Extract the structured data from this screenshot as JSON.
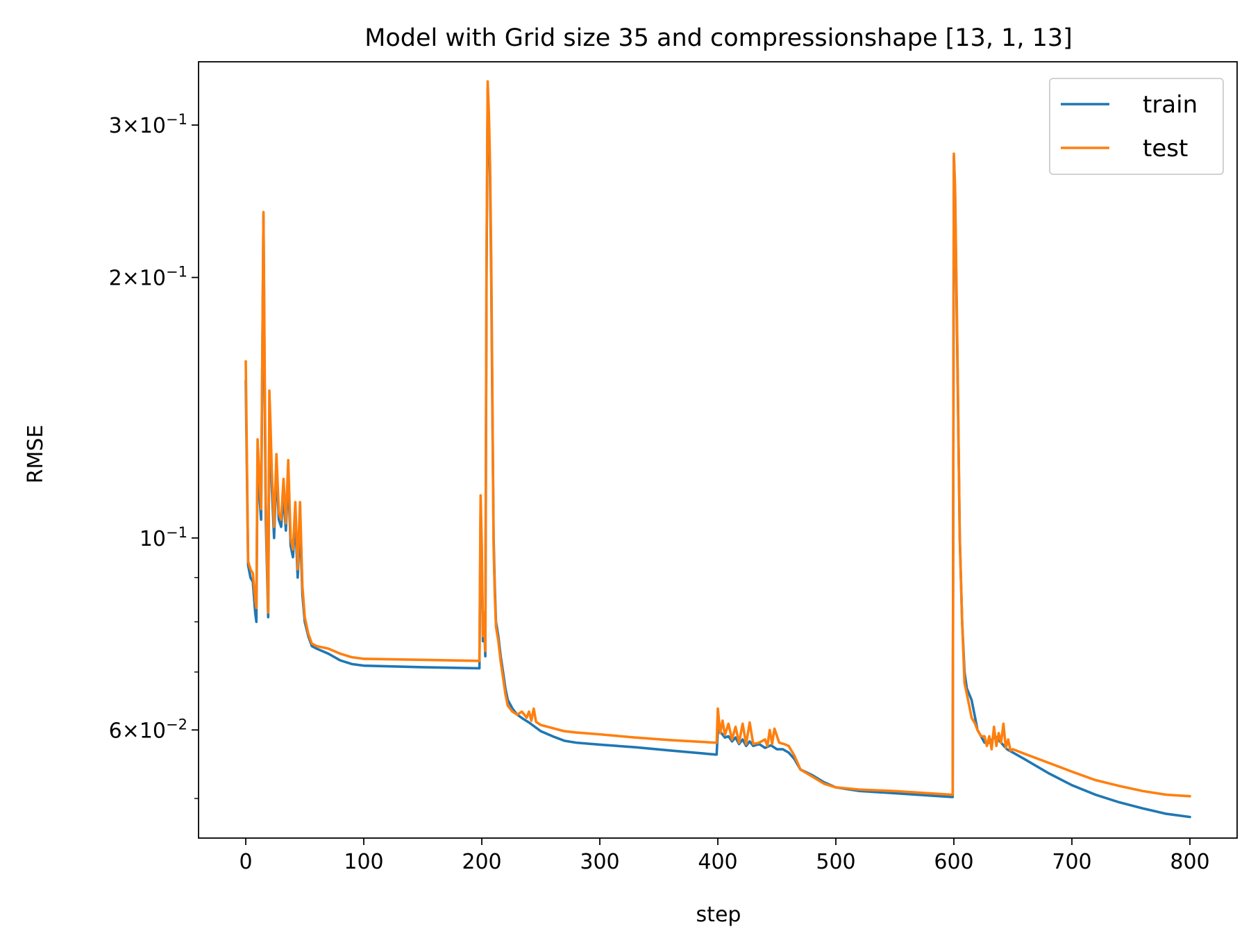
{
  "chart_data": {
    "type": "line",
    "title": "Model with Grid size 35 and compressionshape [13, 1, 13]",
    "xlabel": "step",
    "ylabel": "RMSE",
    "xlim": [
      -40,
      840
    ],
    "ylim": [
      0.045,
      0.355
    ],
    "yscale": "log",
    "grid": false,
    "legend_position": "top-right",
    "x_ticks": [
      0,
      100,
      200,
      300,
      400,
      500,
      600,
      700,
      800
    ],
    "y_major_ticks": [
      {
        "value": 0.1,
        "base": "10",
        "exp": "−1",
        "mant": ""
      },
      {
        "value": 0.2,
        "base": "10",
        "exp": "−1",
        "mant": "2"
      },
      {
        "value": 0.3,
        "base": "10",
        "exp": "−1",
        "mant": "3"
      },
      {
        "value": 0.06,
        "base": "10",
        "exp": "−2",
        "mant": "6"
      }
    ],
    "y_minor_ticks": [
      0.05,
      0.07,
      0.08,
      0.09
    ],
    "series": [
      {
        "name": "train",
        "color": "#1f77b4",
        "points": [
          [
            0,
            0.152
          ],
          [
            2,
            0.093
          ],
          [
            4,
            0.09
          ],
          [
            6,
            0.089
          ],
          [
            8,
            0.082
          ],
          [
            9,
            0.08
          ],
          [
            10,
            0.125
          ],
          [
            12,
            0.11
          ],
          [
            13,
            0.105
          ],
          [
            15,
            0.236
          ],
          [
            16,
            0.15
          ],
          [
            17,
            0.105
          ],
          [
            19,
            0.081
          ],
          [
            20,
            0.14
          ],
          [
            21,
            0.13
          ],
          [
            22,
            0.115
          ],
          [
            24,
            0.1
          ],
          [
            26,
            0.12
          ],
          [
            28,
            0.105
          ],
          [
            30,
            0.103
          ],
          [
            32,
            0.112
          ],
          [
            34,
            0.102
          ],
          [
            36,
            0.118
          ],
          [
            38,
            0.098
          ],
          [
            40,
            0.095
          ],
          [
            42,
            0.105
          ],
          [
            44,
            0.09
          ],
          [
            46,
            0.104
          ],
          [
            48,
            0.086
          ],
          [
            50,
            0.08
          ],
          [
            53,
            0.077
          ],
          [
            56,
            0.075
          ],
          [
            60,
            0.0745
          ],
          [
            70,
            0.0735
          ],
          [
            80,
            0.0722
          ],
          [
            90,
            0.0715
          ],
          [
            100,
            0.0712
          ],
          [
            150,
            0.0709
          ],
          [
            197,
            0.0707
          ],
          [
            198,
            0.0707
          ],
          [
            199,
            0.108
          ],
          [
            200,
            0.095
          ],
          [
            201,
            0.076
          ],
          [
            202,
            0.08
          ],
          [
            203,
            0.073
          ],
          [
            204,
            0.2
          ],
          [
            205,
            0.33
          ],
          [
            206,
            0.3
          ],
          [
            207,
            0.26
          ],
          [
            208,
            0.2
          ],
          [
            209,
            0.14
          ],
          [
            210,
            0.1
          ],
          [
            211,
            0.088
          ],
          [
            212,
            0.08
          ],
          [
            214,
            0.077
          ],
          [
            216,
            0.073
          ],
          [
            218,
            0.07
          ],
          [
            220,
            0.067
          ],
          [
            222,
            0.065
          ],
          [
            226,
            0.0635
          ],
          [
            230,
            0.0625
          ],
          [
            235,
            0.0618
          ],
          [
            240,
            0.0612
          ],
          [
            245,
            0.0605
          ],
          [
            250,
            0.0598
          ],
          [
            260,
            0.059
          ],
          [
            270,
            0.0583
          ],
          [
            280,
            0.058
          ],
          [
            300,
            0.0577
          ],
          [
            330,
            0.0573
          ],
          [
            360,
            0.0568
          ],
          [
            398,
            0.0562
          ],
          [
            399,
            0.0562
          ],
          [
            400,
            0.06
          ],
          [
            403,
            0.0595
          ],
          [
            406,
            0.0588
          ],
          [
            409,
            0.059
          ],
          [
            412,
            0.0582
          ],
          [
            415,
            0.0588
          ],
          [
            418,
            0.0578
          ],
          [
            421,
            0.0585
          ],
          [
            424,
            0.0575
          ],
          [
            427,
            0.0582
          ],
          [
            430,
            0.0575
          ],
          [
            435,
            0.0578
          ],
          [
            440,
            0.0572
          ],
          [
            445,
            0.0576
          ],
          [
            450,
            0.057
          ],
          [
            455,
            0.057
          ],
          [
            460,
            0.0565
          ],
          [
            465,
            0.0555
          ],
          [
            470,
            0.054
          ],
          [
            480,
            0.0532
          ],
          [
            490,
            0.0522
          ],
          [
            500,
            0.0515
          ],
          [
            520,
            0.051
          ],
          [
            550,
            0.0507
          ],
          [
            598,
            0.0502
          ],
          [
            599,
            0.0502
          ],
          [
            600,
            0.276
          ],
          [
            601,
            0.25
          ],
          [
            603,
            0.16
          ],
          [
            605,
            0.1
          ],
          [
            607,
            0.08
          ],
          [
            609,
            0.07
          ],
          [
            611,
            0.067
          ],
          [
            613,
            0.066
          ],
          [
            615,
            0.065
          ],
          [
            618,
            0.062
          ],
          [
            620,
            0.06
          ],
          [
            623,
            0.059
          ],
          [
            626,
            0.058
          ],
          [
            630,
            0.058
          ],
          [
            635,
            0.059
          ],
          [
            640,
            0.058
          ],
          [
            645,
            0.057
          ],
          [
            650,
            0.0565
          ],
          [
            660,
            0.0555
          ],
          [
            680,
            0.0535
          ],
          [
            700,
            0.0518
          ],
          [
            720,
            0.0505
          ],
          [
            740,
            0.0495
          ],
          [
            760,
            0.0487
          ],
          [
            780,
            0.048
          ],
          [
            800,
            0.0476
          ]
        ]
      },
      {
        "name": "test",
        "color": "#ff7f0e",
        "points": [
          [
            0,
            0.16
          ],
          [
            2,
            0.094
          ],
          [
            4,
            0.092
          ],
          [
            6,
            0.091
          ],
          [
            8,
            0.085
          ],
          [
            9,
            0.083
          ],
          [
            10,
            0.13
          ],
          [
            12,
            0.115
          ],
          [
            13,
            0.108
          ],
          [
            15,
            0.238
          ],
          [
            16,
            0.16
          ],
          [
            17,
            0.11
          ],
          [
            19,
            0.082
          ],
          [
            20,
            0.148
          ],
          [
            21,
            0.135
          ],
          [
            22,
            0.12
          ],
          [
            24,
            0.103
          ],
          [
            26,
            0.125
          ],
          [
            28,
            0.107
          ],
          [
            30,
            0.105
          ],
          [
            32,
            0.117
          ],
          [
            34,
            0.104
          ],
          [
            36,
            0.123
          ],
          [
            38,
            0.1
          ],
          [
            40,
            0.097
          ],
          [
            42,
            0.11
          ],
          [
            44,
            0.092
          ],
          [
            46,
            0.11
          ],
          [
            48,
            0.088
          ],
          [
            50,
            0.081
          ],
          [
            53,
            0.0775
          ],
          [
            56,
            0.0755
          ],
          [
            60,
            0.075
          ],
          [
            70,
            0.0745
          ],
          [
            80,
            0.0735
          ],
          [
            90,
            0.0728
          ],
          [
            100,
            0.0725
          ],
          [
            150,
            0.0723
          ],
          [
            197,
            0.0721
          ],
          [
            198,
            0.0721
          ],
          [
            199,
            0.112
          ],
          [
            200,
            0.098
          ],
          [
            201,
            0.077
          ],
          [
            202,
            0.082
          ],
          [
            203,
            0.074
          ],
          [
            204,
            0.21
          ],
          [
            205,
            0.337
          ],
          [
            206,
            0.31
          ],
          [
            207,
            0.27
          ],
          [
            208,
            0.21
          ],
          [
            209,
            0.145
          ],
          [
            210,
            0.098
          ],
          [
            211,
            0.086
          ],
          [
            212,
            0.079
          ],
          [
            214,
            0.076
          ],
          [
            216,
            0.072
          ],
          [
            218,
            0.069
          ],
          [
            220,
            0.066
          ],
          [
            222,
            0.064
          ],
          [
            226,
            0.063
          ],
          [
            230,
            0.0625
          ],
          [
            234,
            0.063
          ],
          [
            238,
            0.062
          ],
          [
            240,
            0.063
          ],
          [
            242,
            0.0615
          ],
          [
            244,
            0.0635
          ],
          [
            246,
            0.0613
          ],
          [
            250,
            0.0608
          ],
          [
            260,
            0.0603
          ],
          [
            270,
            0.0598
          ],
          [
            280,
            0.0596
          ],
          [
            300,
            0.0593
          ],
          [
            330,
            0.0588
          ],
          [
            360,
            0.0584
          ],
          [
            398,
            0.058
          ],
          [
            399,
            0.058
          ],
          [
            400,
            0.0635
          ],
          [
            402,
            0.0595
          ],
          [
            404,
            0.0615
          ],
          [
            406,
            0.0592
          ],
          [
            409,
            0.061
          ],
          [
            412,
            0.0585
          ],
          [
            415,
            0.0605
          ],
          [
            418,
            0.058
          ],
          [
            421,
            0.061
          ],
          [
            424,
            0.0578
          ],
          [
            427,
            0.0612
          ],
          [
            430,
            0.0578
          ],
          [
            435,
            0.058
          ],
          [
            440,
            0.0585
          ],
          [
            442,
            0.0575
          ],
          [
            444,
            0.06
          ],
          [
            446,
            0.0578
          ],
          [
            448,
            0.0602
          ],
          [
            452,
            0.058
          ],
          [
            456,
            0.0578
          ],
          [
            460,
            0.0575
          ],
          [
            465,
            0.056
          ],
          [
            470,
            0.054
          ],
          [
            480,
            0.053
          ],
          [
            490,
            0.052
          ],
          [
            500,
            0.0515
          ],
          [
            520,
            0.0512
          ],
          [
            550,
            0.051
          ],
          [
            598,
            0.0505
          ],
          [
            599,
            0.0505
          ],
          [
            600,
            0.278
          ],
          [
            601,
            0.255
          ],
          [
            603,
            0.165
          ],
          [
            605,
            0.1
          ],
          [
            607,
            0.08
          ],
          [
            609,
            0.068
          ],
          [
            611,
            0.066
          ],
          [
            613,
            0.064
          ],
          [
            615,
            0.062
          ],
          [
            618,
            0.061
          ],
          [
            620,
            0.06
          ],
          [
            623,
            0.059
          ],
          [
            626,
            0.059
          ],
          [
            628,
            0.0575
          ],
          [
            630,
            0.059
          ],
          [
            632,
            0.057
          ],
          [
            634,
            0.0605
          ],
          [
            636,
            0.0575
          ],
          [
            638,
            0.0595
          ],
          [
            640,
            0.058
          ],
          [
            642,
            0.061
          ],
          [
            644,
            0.0572
          ],
          [
            646,
            0.0585
          ],
          [
            648,
            0.0568
          ],
          [
            650,
            0.057
          ],
          [
            660,
            0.0563
          ],
          [
            680,
            0.055
          ],
          [
            700,
            0.0537
          ],
          [
            720,
            0.0525
          ],
          [
            740,
            0.0517
          ],
          [
            760,
            0.051
          ],
          [
            780,
            0.0505
          ],
          [
            800,
            0.0503
          ]
        ]
      }
    ]
  }
}
